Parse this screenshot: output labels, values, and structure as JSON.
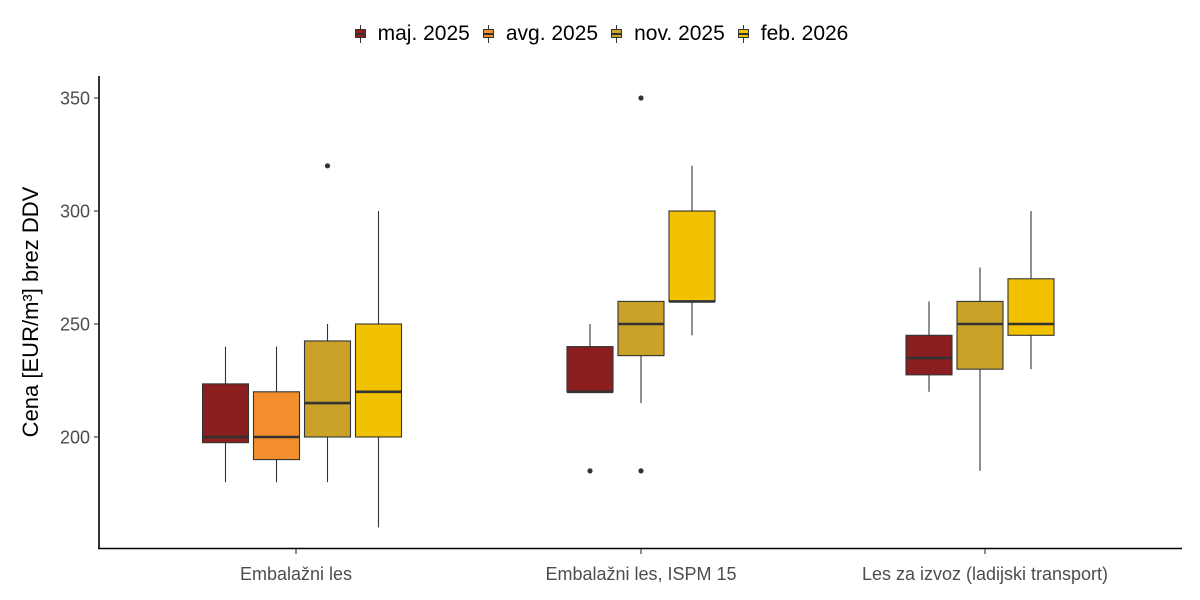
{
  "chart_data": {
    "type": "boxplot",
    "title": "",
    "xlabel": "",
    "ylabel": "Cena [EUR/m³] brez DDV",
    "ylim": [
      147,
      360
    ],
    "yticks": [
      200,
      250,
      300,
      350
    ],
    "grid": false,
    "legend_position": "top",
    "categories": [
      "Embalažni les",
      "Embalažni les, ISPM 15",
      "Les za izvoz (ladijski transport)"
    ],
    "series": [
      {
        "name": "maj. 2025",
        "color": "#8B1E1E",
        "boxes": [
          {
            "category": 0,
            "whisker_low": 180,
            "q1": 197.5,
            "median": 200,
            "q3": 223.5,
            "whisker_high": 240,
            "outliers": []
          },
          {
            "category": 1,
            "whisker_low": 220,
            "q1": 220,
            "median": 220,
            "q3": 240,
            "whisker_high": 250,
            "outliers": [
              185
            ]
          },
          {
            "category": 2,
            "whisker_low": 220,
            "q1": 227.5,
            "median": 235,
            "q3": 245,
            "whisker_high": 260,
            "outliers": []
          }
        ]
      },
      {
        "name": "avg. 2025",
        "color": "#F28E2B",
        "boxes": [
          {
            "category": 0,
            "whisker_low": 180,
            "q1": 190,
            "median": 200,
            "q3": 220,
            "whisker_high": 240,
            "outliers": []
          }
        ]
      },
      {
        "name": "nov. 2025",
        "color": "#C9A227",
        "boxes": [
          {
            "category": 0,
            "whisker_low": 180,
            "q1": 200,
            "median": 215,
            "q3": 242.5,
            "whisker_high": 250,
            "outliers": [
              320
            ]
          },
          {
            "category": 1,
            "whisker_low": 215,
            "q1": 236,
            "median": 250,
            "q3": 260,
            "whisker_high": 260,
            "outliers": [
              350,
              185
            ]
          },
          {
            "category": 2,
            "whisker_low": 185,
            "q1": 230,
            "median": 250,
            "q3": 260,
            "whisker_high": 275,
            "outliers": []
          }
        ]
      },
      {
        "name": "feb. 2026",
        "color": "#F2C200",
        "boxes": [
          {
            "category": 0,
            "whisker_low": 160,
            "q1": 200,
            "median": 220,
            "q3": 250,
            "whisker_high": 300,
            "outliers": []
          },
          {
            "category": 1,
            "whisker_low": 245,
            "q1": 260,
            "median": 260,
            "q3": 300,
            "whisker_high": 320,
            "outliers": []
          },
          {
            "category": 2,
            "whisker_low": 230,
            "q1": 245,
            "median": 250,
            "q3": 270,
            "whisker_high": 300,
            "outliers": []
          }
        ]
      }
    ]
  }
}
